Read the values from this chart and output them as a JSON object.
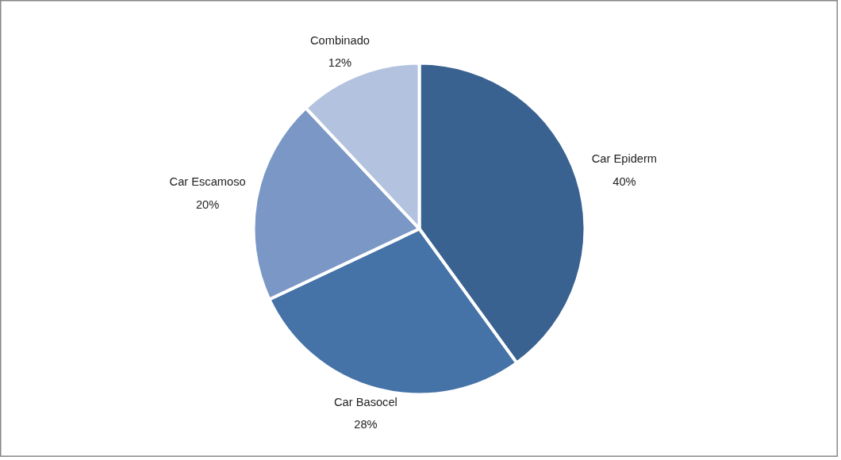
{
  "chart_data": {
    "type": "pie",
    "categories": [
      "Car Epiderm",
      "Car Basocel",
      "Car Escamoso",
      "Combinado"
    ],
    "values": [
      40,
      28,
      20,
      12
    ],
    "value_labels": [
      "40%",
      "28%",
      "20%",
      "12%"
    ],
    "colors": [
      "#3a6290",
      "#4572a7",
      "#7a97c5",
      "#b3c2de"
    ],
    "legend": false
  }
}
